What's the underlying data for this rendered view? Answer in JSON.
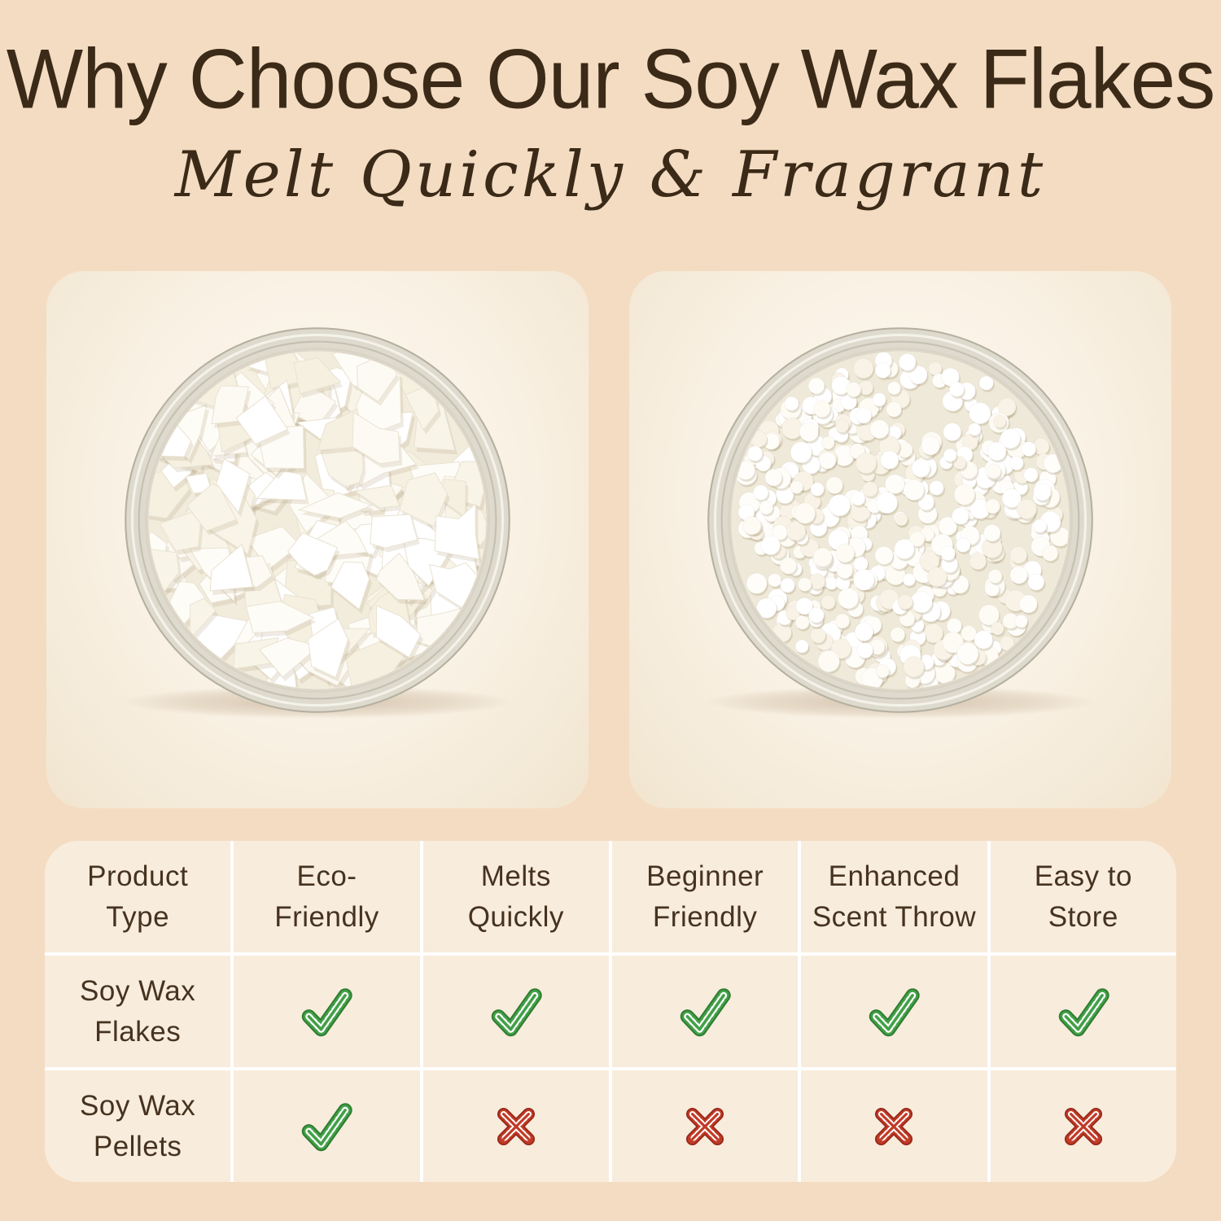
{
  "page": {
    "title": "Why Choose Our Soy Wax Flakes",
    "subtitle": "Melt Quickly & Fragrant"
  },
  "photos": {
    "left_label": "soy-wax-flakes-bowl",
    "right_label": "soy-wax-pellets-bowl"
  },
  "comparison_table": {
    "headers": [
      "Product\nType",
      "Eco-\nFriendly",
      "Melts\nQuickly",
      "Beginner\nFriendly",
      "Enhanced\nScent Throw",
      "Easy to\nStore"
    ],
    "rows": [
      {
        "label": "Soy Wax\nFlakes",
        "values": [
          "check",
          "check",
          "check",
          "check",
          "check"
        ]
      },
      {
        "label": "Soy Wax\nPellets",
        "values": [
          "check",
          "cross",
          "cross",
          "cross",
          "cross"
        ]
      }
    ]
  },
  "colors": {
    "background": "#f4dcc3",
    "card": "#f8efe2",
    "cell": "#f8ecdc",
    "grid_line": "#ffffff",
    "text": "#3b2a17",
    "check_green": "#43a047",
    "check_green_dark": "#2e7d32",
    "cross_red": "#c13a26",
    "cross_red_dark": "#96291a",
    "stitch_white": "#ffffff"
  }
}
